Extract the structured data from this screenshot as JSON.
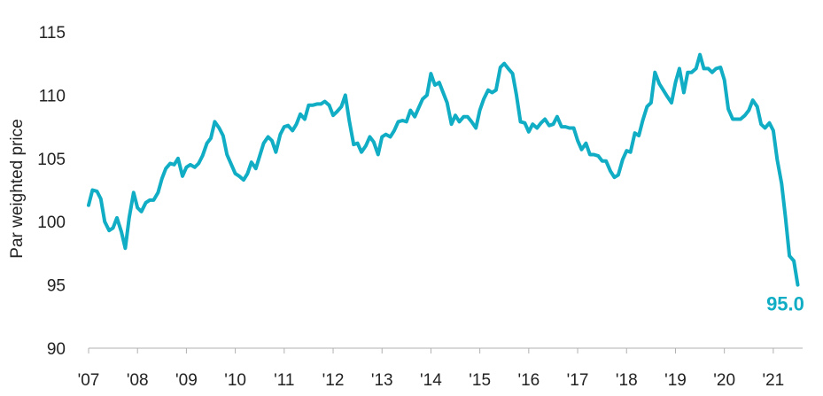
{
  "chart_data": {
    "type": "line",
    "title": "",
    "xlabel": "",
    "ylabel": "Par weighted price",
    "ylim": [
      90,
      115
    ],
    "yticks": [
      90,
      95,
      100,
      105,
      110,
      115
    ],
    "xlim": [
      2007,
      2021.6
    ],
    "xtick_labels": [
      "'07",
      "'08",
      "'09",
      "'10",
      "'11",
      "'12",
      "'13",
      "'14",
      "'15",
      "'16",
      "'17",
      "'18",
      "'19",
      "'20",
      "'21"
    ],
    "xtick_years": [
      2007,
      2008,
      2009,
      2010,
      2011,
      2012,
      2013,
      2014,
      2015,
      2016,
      2017,
      2018,
      2019,
      2020,
      2021
    ],
    "grid": false,
    "legend": "none",
    "line_color": "#10adc4",
    "end_label": "95.0",
    "series": [
      {
        "name": "",
        "x": [
          2007.0,
          2007.08,
          2007.17,
          2007.25,
          2007.33,
          2007.42,
          2007.5,
          2007.58,
          2007.67,
          2007.75,
          2007.83,
          2007.92,
          2008.0,
          2008.08,
          2008.17,
          2008.25,
          2008.33,
          2008.42,
          2008.5,
          2008.58,
          2008.67,
          2008.75,
          2008.83,
          2008.92,
          2009.0,
          2009.08,
          2009.17,
          2009.25,
          2009.33,
          2009.42,
          2009.5,
          2009.58,
          2009.67,
          2009.75,
          2009.83,
          2009.92,
          2010.0,
          2010.08,
          2010.17,
          2010.25,
          2010.33,
          2010.42,
          2010.5,
          2010.58,
          2010.67,
          2010.75,
          2010.83,
          2010.92,
          2011.0,
          2011.08,
          2011.17,
          2011.25,
          2011.33,
          2011.42,
          2011.5,
          2011.58,
          2011.67,
          2011.75,
          2011.83,
          2011.92,
          2012.0,
          2012.08,
          2012.17,
          2012.25,
          2012.33,
          2012.42,
          2012.5,
          2012.58,
          2012.67,
          2012.75,
          2012.83,
          2012.92,
          2013.0,
          2013.08,
          2013.17,
          2013.25,
          2013.33,
          2013.42,
          2013.5,
          2013.58,
          2013.67,
          2013.75,
          2013.83,
          2013.92,
          2014.0,
          2014.08,
          2014.17,
          2014.25,
          2014.33,
          2014.42,
          2014.5,
          2014.58,
          2014.67,
          2014.75,
          2014.83,
          2014.92,
          2015.0,
          2015.08,
          2015.17,
          2015.25,
          2015.33,
          2015.42,
          2015.5,
          2015.58,
          2015.67,
          2015.75,
          2015.83,
          2015.92,
          2016.0,
          2016.08,
          2016.17,
          2016.25,
          2016.33,
          2016.42,
          2016.5,
          2016.58,
          2016.67,
          2016.75,
          2016.83,
          2016.92,
          2017.0,
          2017.08,
          2017.17,
          2017.25,
          2017.33,
          2017.42,
          2017.5,
          2017.58,
          2017.67,
          2017.75,
          2017.83,
          2017.92,
          2018.0,
          2018.08,
          2018.17,
          2018.25,
          2018.33,
          2018.42,
          2018.5,
          2018.58,
          2018.67,
          2018.75,
          2018.83,
          2018.92,
          2019.0,
          2019.08,
          2019.17,
          2019.25,
          2019.33,
          2019.42,
          2019.5,
          2019.58,
          2019.67,
          2019.75,
          2019.83,
          2019.92,
          2020.0,
          2020.08,
          2020.17,
          2020.25,
          2020.33,
          2020.42,
          2020.5,
          2020.58,
          2020.67,
          2020.75,
          2020.83,
          2020.92,
          2021.0,
          2021.08,
          2021.17,
          2021.25,
          2021.33,
          2021.42,
          2021.5
        ],
        "values": [
          101.3,
          102.5,
          102.4,
          101.8,
          100.0,
          99.3,
          99.5,
          100.3,
          99.2,
          97.9,
          100.3,
          102.3,
          101.1,
          100.8,
          101.5,
          101.7,
          101.7,
          102.3,
          103.4,
          104.2,
          104.6,
          104.5,
          105.0,
          103.6,
          104.3,
          104.5,
          104.3,
          104.6,
          105.2,
          106.2,
          106.6,
          107.9,
          107.4,
          106.8,
          105.3,
          104.5,
          103.8,
          103.6,
          103.3,
          103.8,
          104.7,
          104.2,
          105.2,
          106.2,
          106.7,
          106.4,
          105.5,
          106.9,
          107.5,
          107.6,
          107.2,
          107.7,
          108.5,
          108.1,
          109.2,
          109.2,
          109.3,
          109.3,
          109.5,
          109.2,
          108.4,
          108.7,
          109.1,
          110.0,
          108.0,
          106.1,
          106.2,
          105.5,
          106.0,
          106.7,
          106.3,
          105.3,
          106.7,
          106.9,
          106.7,
          107.2,
          107.9,
          108.0,
          107.9,
          108.8,
          108.3,
          109.0,
          109.7,
          110.0,
          111.7,
          110.8,
          111.0,
          110.2,
          109.4,
          107.7,
          108.4,
          107.9,
          108.3,
          108.3,
          107.9,
          107.4,
          108.8,
          109.7,
          110.4,
          110.2,
          110.4,
          112.2,
          112.5,
          112.1,
          111.7,
          110.0,
          107.9,
          107.8,
          107.1,
          107.7,
          107.4,
          107.8,
          108.1,
          107.6,
          107.7,
          108.3,
          107.5,
          107.5,
          107.4,
          107.4,
          106.4,
          105.7,
          106.2,
          105.3,
          105.3,
          105.2,
          104.8,
          104.8,
          104.0,
          103.5,
          103.7,
          104.9,
          105.6,
          105.5,
          107.0,
          106.8,
          108.0,
          109.1,
          109.4,
          111.8,
          110.9,
          110.4,
          109.9,
          109.4,
          111.0,
          112.1,
          110.2,
          111.8,
          111.8,
          112.1,
          113.2,
          112.1,
          112.1,
          111.8,
          112.1,
          112.2,
          111.2,
          108.9,
          108.1,
          108.1,
          108.1,
          108.4,
          108.8,
          109.6,
          109.1,
          107.7,
          107.4,
          107.8,
          107.2,
          104.9,
          103.0,
          100.3,
          97.3,
          96.9,
          95.0
        ]
      }
    ]
  }
}
